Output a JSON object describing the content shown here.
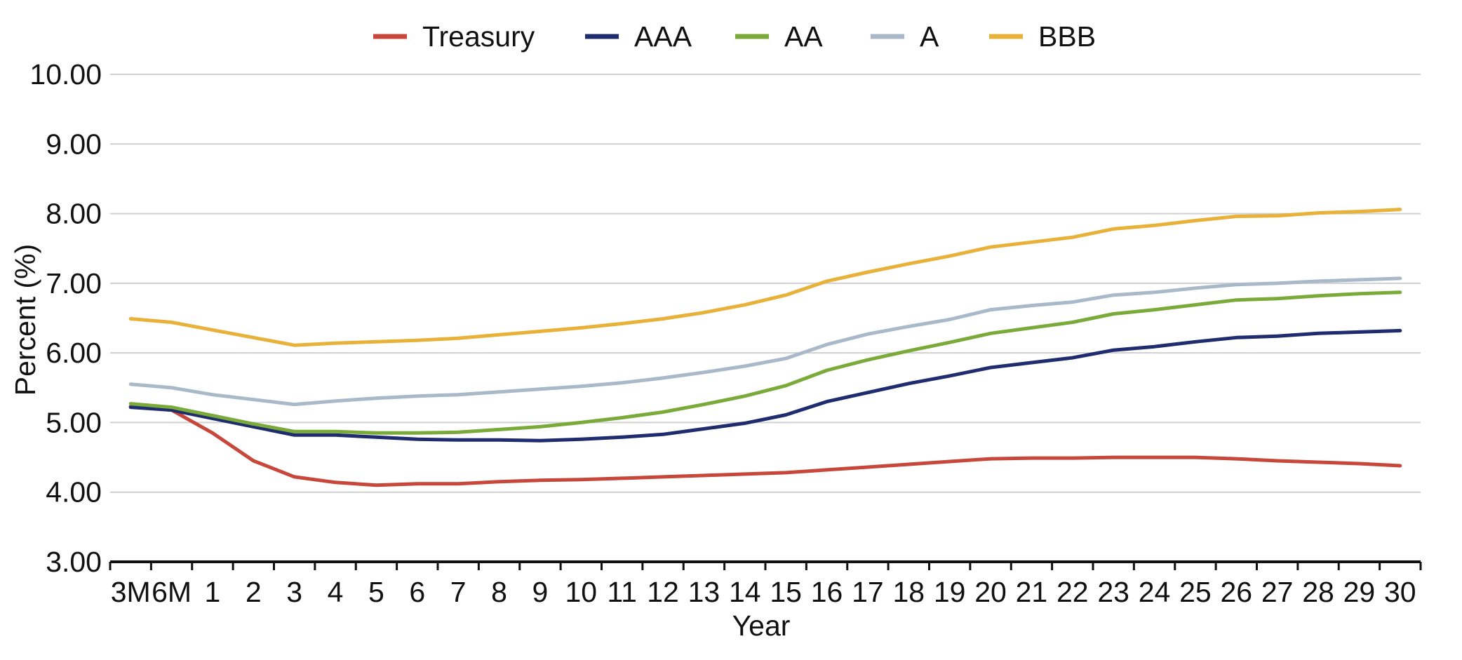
{
  "chart_data": {
    "type": "line",
    "title": "",
    "xlabel": "Year",
    "ylabel": "Percent (%)",
    "ylim": [
      3,
      10
    ],
    "yticks": [
      "3.00",
      "4.00",
      "5.00",
      "6.00",
      "7.00",
      "8.00",
      "9.00",
      "10.00"
    ],
    "categories": [
      "3M",
      "6M",
      "1",
      "2",
      "3",
      "4",
      "5",
      "6",
      "7",
      "8",
      "9",
      "10",
      "11",
      "12",
      "13",
      "14",
      "15",
      "16",
      "17",
      "18",
      "19",
      "20",
      "21",
      "22",
      "23",
      "24",
      "25",
      "26",
      "27",
      "28",
      "29",
      "30"
    ],
    "grid": true,
    "legend_position": "top",
    "series": [
      {
        "name": "Treasury",
        "color": "#c8473b",
        "values": [
          5.23,
          5.18,
          4.85,
          4.45,
          4.22,
          4.14,
          4.1,
          4.12,
          4.12,
          4.15,
          4.17,
          4.18,
          4.2,
          4.22,
          4.24,
          4.26,
          4.28,
          4.32,
          4.36,
          4.4,
          4.44,
          4.48,
          4.49,
          4.49,
          4.5,
          4.5,
          4.5,
          4.48,
          4.45,
          4.43,
          4.41,
          4.38
        ]
      },
      {
        "name": "AAA",
        "color": "#1f2d6e",
        "values": [
          5.22,
          5.18,
          5.06,
          4.94,
          4.82,
          4.82,
          4.79,
          4.76,
          4.75,
          4.75,
          4.74,
          4.76,
          4.79,
          4.83,
          4.91,
          4.99,
          5.11,
          5.3,
          5.43,
          5.56,
          5.67,
          5.79,
          5.86,
          5.93,
          6.04,
          6.09,
          6.16,
          6.22,
          6.24,
          6.28,
          6.3,
          6.32
        ]
      },
      {
        "name": "AA",
        "color": "#7aab3a",
        "values": [
          5.27,
          5.22,
          5.1,
          4.98,
          4.87,
          4.87,
          4.85,
          4.85,
          4.86,
          4.9,
          4.94,
          5.0,
          5.07,
          5.15,
          5.26,
          5.38,
          5.53,
          5.75,
          5.9,
          6.03,
          6.15,
          6.28,
          6.36,
          6.44,
          6.56,
          6.62,
          6.69,
          6.76,
          6.78,
          6.82,
          6.85,
          6.87
        ]
      },
      {
        "name": "A",
        "color": "#a9b9c9",
        "values": [
          5.55,
          5.5,
          5.4,
          5.33,
          5.26,
          5.31,
          5.35,
          5.38,
          5.4,
          5.44,
          5.48,
          5.52,
          5.57,
          5.64,
          5.72,
          5.81,
          5.92,
          6.12,
          6.27,
          6.38,
          6.48,
          6.62,
          6.68,
          6.73,
          6.83,
          6.87,
          6.93,
          6.98,
          7.0,
          7.03,
          7.05,
          7.07
        ]
      },
      {
        "name": "BBB",
        "color": "#e8b13a",
        "values": [
          6.49,
          6.44,
          6.33,
          6.22,
          6.11,
          6.14,
          6.16,
          6.18,
          6.21,
          6.26,
          6.31,
          6.36,
          6.42,
          6.49,
          6.58,
          6.69,
          6.83,
          7.03,
          7.16,
          7.28,
          7.39,
          7.52,
          7.59,
          7.66,
          7.78,
          7.83,
          7.9,
          7.96,
          7.97,
          8.01,
          8.03,
          8.06
        ]
      }
    ]
  }
}
